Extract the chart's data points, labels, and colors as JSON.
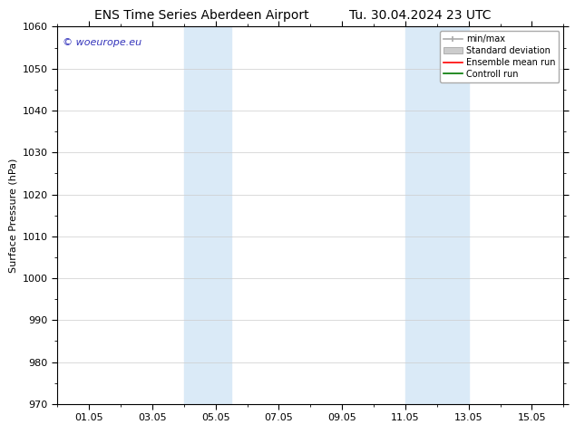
{
  "title_left": "ENS Time Series Aberdeen Airport",
  "title_right": "Tu. 30.04.2024 23 UTC",
  "ylabel": "Surface Pressure (hPa)",
  "ylim": [
    970,
    1060
  ],
  "yticks": [
    970,
    980,
    990,
    1000,
    1010,
    1020,
    1030,
    1040,
    1050,
    1060
  ],
  "xtick_labels": [
    "01.05",
    "03.05",
    "05.05",
    "07.05",
    "09.05",
    "11.05",
    "13.05",
    "15.05"
  ],
  "xtick_positions": [
    1,
    3,
    5,
    7,
    9,
    11,
    13,
    15
  ],
  "xlim": [
    0,
    16
  ],
  "shaded_bands": [
    {
      "x_start": 4.0,
      "x_end": 5.5
    },
    {
      "x_start": 11.0,
      "x_end": 13.0
    }
  ],
  "shaded_color": "#daeaf7",
  "watermark_text": "© woeurope.eu",
  "watermark_color": "#3333bb",
  "legend_entries": [
    {
      "label": "min/max",
      "color": "#aaaaaa",
      "style": "line_with_caps"
    },
    {
      "label": "Standard deviation",
      "color": "#cccccc",
      "style": "bar"
    },
    {
      "label": "Ensemble mean run",
      "color": "#ff0000",
      "style": "line"
    },
    {
      "label": "Controll run",
      "color": "#007700",
      "style": "line"
    }
  ],
  "bg_color": "#ffffff",
  "title_fontsize": 10,
  "axis_fontsize": 8,
  "tick_fontsize": 8,
  "watermark_fontsize": 8
}
